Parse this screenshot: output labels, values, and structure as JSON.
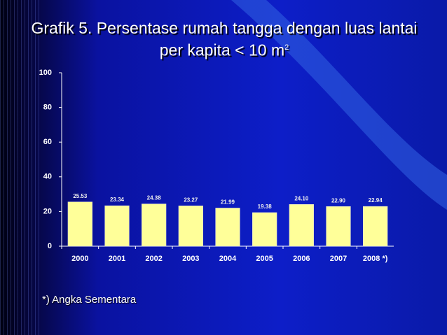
{
  "chart_data": {
    "type": "bar",
    "title": "Grafik 5. Persentase rumah tangga dengan luas lantai per kapita < 10 m",
    "title_superscript": "2",
    "categories": [
      "2000",
      "2001",
      "2002",
      "2003",
      "2004",
      "2005",
      "2006",
      "2007",
      "2008 *)"
    ],
    "values": [
      25.53,
      23.34,
      24.38,
      23.27,
      21.99,
      19.38,
      24.1,
      22.9,
      22.94
    ],
    "value_labels": [
      "25.53",
      "23.34",
      "24.38",
      "23.27",
      "21.99",
      "19.38",
      "24.10",
      "22.90",
      "22.94"
    ],
    "color": "#ffff99",
    "ylim": [
      0,
      100
    ],
    "yticks": [
      0,
      20,
      40,
      60,
      80,
      100
    ],
    "grid": false,
    "footnote": "*) Angka Sementara"
  }
}
